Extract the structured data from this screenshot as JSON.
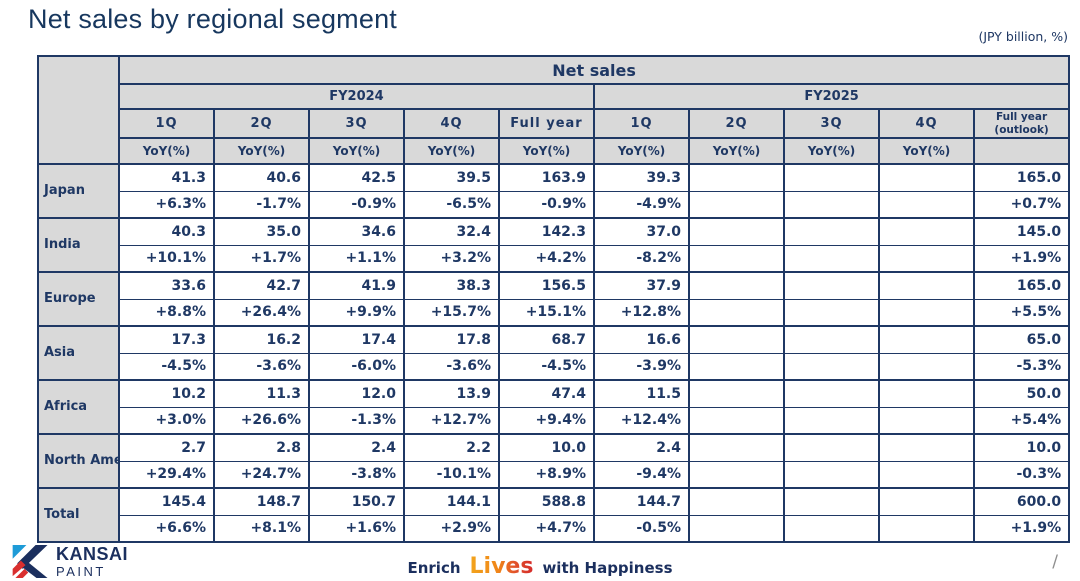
{
  "page": {
    "title": "Net sales by regional segment",
    "unit_note": "(JPY billion, %)",
    "page_slash": "/"
  },
  "colors": {
    "navy_text": "#1f3864",
    "border_navy": "#1f3864",
    "header_gray": "#d9d9d9",
    "logo_cyan": "#1e9bd7",
    "logo_red": "#d92f2f",
    "logo_navy": "#1b2f5e",
    "lives_gradient_start": "#f2a51c",
    "lives_gradient_end": "#d42a2a"
  },
  "table": {
    "header": {
      "net_sales": "Net sales",
      "fy2024": "FY2024",
      "fy2025": "FY2025",
      "quarters_fy2024": [
        "1Q",
        "2Q",
        "3Q",
        "4Q",
        "Full year"
      ],
      "quarters_fy2025": [
        "1Q",
        "2Q",
        "3Q",
        "4Q"
      ],
      "fy2025_full_year_line1": "Full year",
      "fy2025_full_year_line2": "(outlook)",
      "yoy_label": "YoY(%)"
    },
    "columns": [
      "FY2024 1Q",
      "FY2024 2Q",
      "FY2024 3Q",
      "FY2024 4Q",
      "FY2024 Full year",
      "FY2025 1Q",
      "FY2025 2Q",
      "FY2025 3Q",
      "FY2025 4Q",
      "FY2025 Full year (outlook)"
    ],
    "rows": [
      {
        "region": "Japan",
        "values": [
          "41.3",
          "40.6",
          "42.5",
          "39.5",
          "163.9",
          "39.3",
          "",
          "",
          "",
          "165.0"
        ],
        "yoy": [
          "+6.3%",
          "-1.7%",
          "-0.9%",
          "-6.5%",
          "-0.9%",
          "-4.9%",
          "",
          "",
          "",
          "+0.7%"
        ]
      },
      {
        "region": "India",
        "values": [
          "40.3",
          "35.0",
          "34.6",
          "32.4",
          "142.3",
          "37.0",
          "",
          "",
          "",
          "145.0"
        ],
        "yoy": [
          "+10.1%",
          "+1.7%",
          "+1.1%",
          "+3.2%",
          "+4.2%",
          "-8.2%",
          "",
          "",
          "",
          "+1.9%"
        ]
      },
      {
        "region": "Europe",
        "values": [
          "33.6",
          "42.7",
          "41.9",
          "38.3",
          "156.5",
          "37.9",
          "",
          "",
          "",
          "165.0"
        ],
        "yoy": [
          "+8.8%",
          "+26.4%",
          "+9.9%",
          "+15.7%",
          "+15.1%",
          "+12.8%",
          "",
          "",
          "",
          "+5.5%"
        ]
      },
      {
        "region": "Asia",
        "values": [
          "17.3",
          "16.2",
          "17.4",
          "17.8",
          "68.7",
          "16.6",
          "",
          "",
          "",
          "65.0"
        ],
        "yoy": [
          "-4.5%",
          "-3.6%",
          "-6.0%",
          "-3.6%",
          "-4.5%",
          "-3.9%",
          "",
          "",
          "",
          "-5.3%"
        ]
      },
      {
        "region": "Africa",
        "values": [
          "10.2",
          "11.3",
          "12.0",
          "13.9",
          "47.4",
          "11.5",
          "",
          "",
          "",
          "50.0"
        ],
        "yoy": [
          "+3.0%",
          "+26.6%",
          "-1.3%",
          "+12.7%",
          "+9.4%",
          "+12.4%",
          "",
          "",
          "",
          "+5.4%"
        ]
      },
      {
        "region": "North America",
        "values": [
          "2.7",
          "2.8",
          "2.4",
          "2.2",
          "10.0",
          "2.4",
          "",
          "",
          "",
          "10.0"
        ],
        "yoy": [
          "+29.4%",
          "+24.7%",
          "-3.8%",
          "-10.1%",
          "+8.9%",
          "-9.4%",
          "",
          "",
          "",
          "-0.3%"
        ]
      },
      {
        "region": "Total",
        "values": [
          "145.4",
          "148.7",
          "150.7",
          "144.1",
          "588.8",
          "144.7",
          "",
          "",
          "",
          "600.0"
        ],
        "yoy": [
          "+6.6%",
          "+8.1%",
          "+1.6%",
          "+2.9%",
          "+4.7%",
          "-0.5%",
          "",
          "",
          "",
          "+1.9%"
        ]
      }
    ]
  },
  "footer": {
    "logo_top": "KANSAI",
    "logo_bottom": "PAINT",
    "tagline_enrich": "Enrich",
    "tagline_lives": "Lives",
    "tagline_rest": "with Happiness"
  }
}
